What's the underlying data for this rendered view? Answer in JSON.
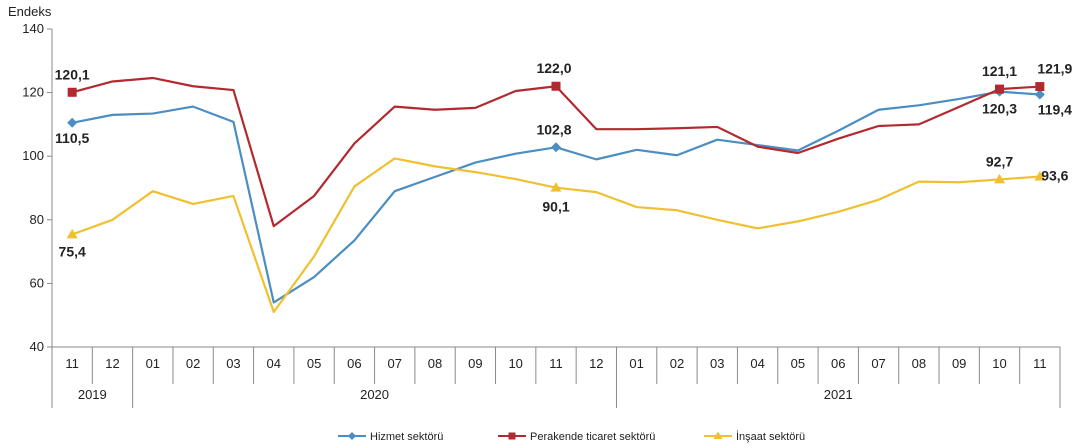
{
  "chart_data": {
    "type": "line",
    "ylabel": "Endeks",
    "ylim": [
      40,
      140
    ],
    "yticks": [
      40,
      60,
      80,
      100,
      120,
      140
    ],
    "grid": false,
    "legend_position": "bottom",
    "categories": [
      "11",
      "12",
      "01",
      "02",
      "03",
      "04",
      "05",
      "06",
      "07",
      "08",
      "09",
      "10",
      "11",
      "12",
      "01",
      "02",
      "03",
      "04",
      "05",
      "06",
      "07",
      "08",
      "09",
      "10",
      "11"
    ],
    "year_groups": [
      {
        "label": "2019",
        "start": 0,
        "end": 1
      },
      {
        "label": "2020",
        "start": 2,
        "end": 13
      },
      {
        "label": "2021",
        "start": 14,
        "end": 24
      }
    ],
    "series": [
      {
        "name": "Hizmet sektörü",
        "color": "#4a8ec2",
        "marker": "diamond",
        "values": [
          110.5,
          113.0,
          113.4,
          115.6,
          110.8,
          54.0,
          62.0,
          73.5,
          89.0,
          93.5,
          98.0,
          100.8,
          102.8,
          99.0,
          102.0,
          100.3,
          105.2,
          103.5,
          101.8,
          108.0,
          114.6,
          116.0,
          118.0,
          120.3,
          119.4
        ]
      },
      {
        "name": "Perakende ticaret sektörü",
        "color": "#b22a2f",
        "marker": "square",
        "values": [
          120.1,
          123.5,
          124.6,
          122.0,
          120.8,
          78.0,
          87.5,
          104.0,
          115.6,
          114.6,
          115.2,
          120.5,
          122.0,
          108.5,
          108.5,
          108.8,
          109.2,
          103.0,
          101.0,
          105.5,
          109.5,
          110.0,
          115.5,
          121.1,
          121.9
        ]
      },
      {
        "name": "İnşaat sektörü",
        "color": "#f0c030",
        "marker": "triangle",
        "values": [
          75.4,
          80.0,
          89.0,
          85.0,
          87.5,
          51.0,
          68.5,
          90.5,
          99.3,
          96.8,
          95.0,
          92.8,
          90.1,
          88.7,
          84.0,
          83.0,
          80.0,
          77.3,
          79.5,
          82.5,
          86.3,
          92.0,
          91.8,
          92.7,
          93.6
        ]
      }
    ],
    "annotations": [
      {
        "series": 1,
        "index": 0,
        "text": "120,1"
      },
      {
        "series": 0,
        "index": 0,
        "text": "110,5"
      },
      {
        "series": 2,
        "index": 0,
        "text": "75,4"
      },
      {
        "series": 1,
        "index": 12,
        "text": "122,0"
      },
      {
        "series": 0,
        "index": 12,
        "text": "102,8"
      },
      {
        "series": 2,
        "index": 12,
        "text": "90,1"
      },
      {
        "series": 1,
        "index": 23,
        "text": "121,1"
      },
      {
        "series": 0,
        "index": 23,
        "text": "120,3"
      },
      {
        "series": 2,
        "index": 23,
        "text": "92,7"
      },
      {
        "series": 1,
        "index": 24,
        "text": "121,9"
      },
      {
        "series": 0,
        "index": 24,
        "text": "119,4"
      },
      {
        "series": 2,
        "index": 24,
        "text": "93,6"
      }
    ]
  }
}
